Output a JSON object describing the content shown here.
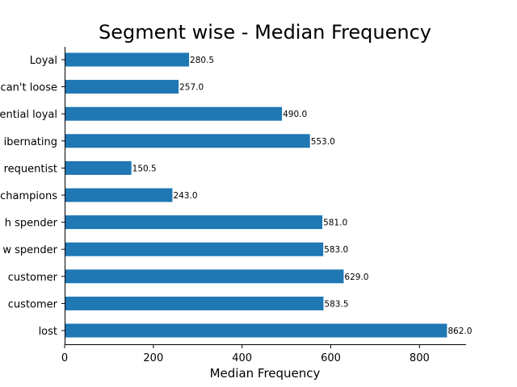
{
  "chart_data": {
    "type": "bar",
    "orientation": "horizontal",
    "title": "Segment wise - Median Frequency",
    "xlabel": "Median Frequency",
    "ylabel": "",
    "categories": [
      "lost",
      "customer",
      "customer",
      "w spender",
      "h spender",
      "champions",
      "requentist",
      "ibernating",
      "ential loyal",
      "can't loose",
      "Loyal"
    ],
    "values": [
      862.0,
      583.5,
      629.0,
      583.0,
      581.0,
      243.0,
      150.5,
      553.0,
      490.0,
      257.0,
      280.5
    ],
    "data_labels": [
      "862.0",
      "583.5",
      "629.0",
      "583.0",
      "581.0",
      "243.0",
      "150.5",
      "553.0",
      "490.0",
      "257.0",
      "280.5"
    ],
    "xlim": [
      0,
      905
    ],
    "xticks": [
      0,
      200,
      400,
      600,
      800
    ],
    "bar_color": "#1f77b4",
    "grid": false,
    "legend": "none"
  }
}
